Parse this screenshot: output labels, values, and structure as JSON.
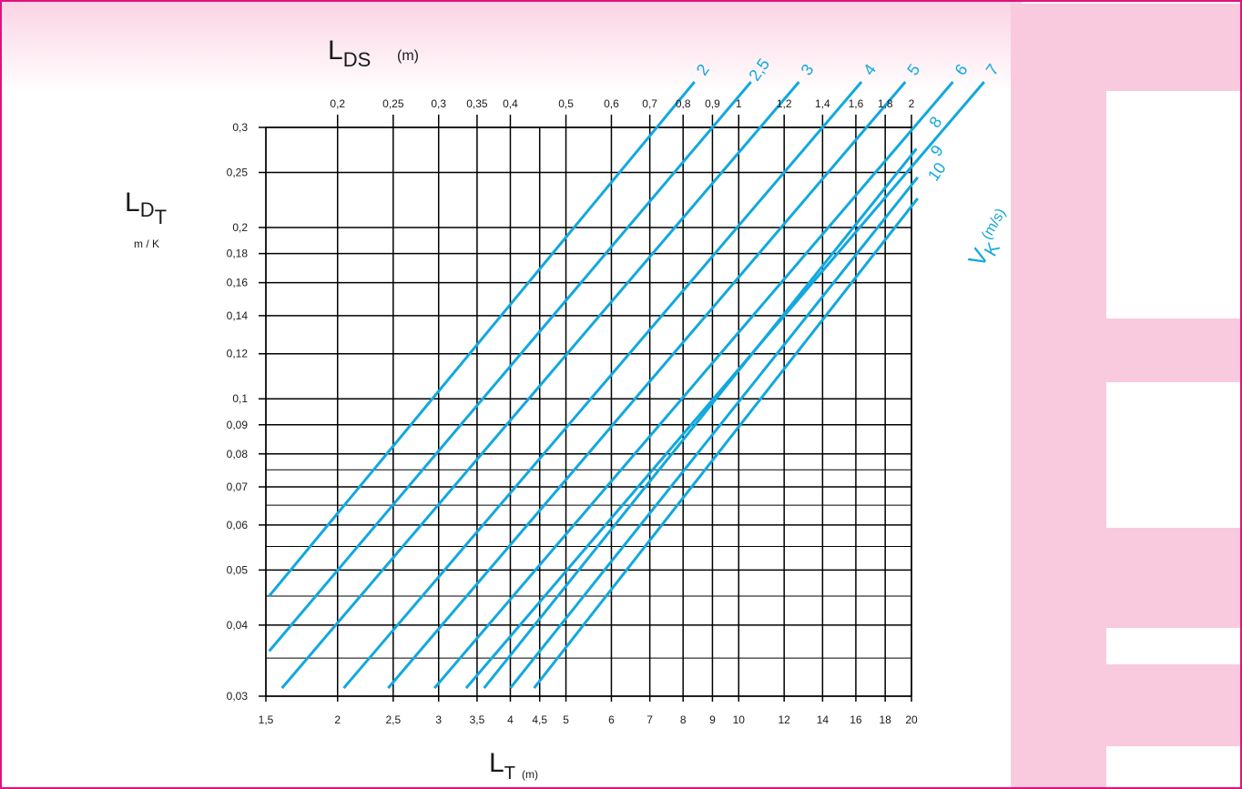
{
  "colors": {
    "frame": "#e0117f",
    "line": "#12a8de",
    "decor": "#f9c9dd",
    "grid": "#000000"
  },
  "labels": {
    "top_axis": "L",
    "top_axis_sub": "DS",
    "top_axis_unit": "(m)",
    "left_axis": "L",
    "left_axis_sub": "D",
    "left_axis_sub2": "T",
    "left_axis_unit": "m / K",
    "bottom_axis": "L",
    "bottom_axis_sub": "T",
    "bottom_axis_unit": "(m)",
    "series_axis": "V",
    "series_axis_sub": "K",
    "series_axis_unit": "(m/s)"
  },
  "chart_data": {
    "type": "line",
    "x_scale": "log",
    "y_scale": "log",
    "xlim": [
      1.5,
      20
    ],
    "ylim": [
      0.03,
      0.3
    ],
    "grid": true,
    "x_ticks": [
      1.5,
      2,
      2.5,
      3,
      3.5,
      4,
      4.5,
      5,
      6,
      7,
      8,
      9,
      10,
      12,
      14,
      16,
      18,
      20
    ],
    "x_tick_labels": [
      "1,5",
      "2",
      "2,5",
      "3",
      "3,5",
      "4",
      "4,5",
      "5",
      "6",
      "7",
      "8",
      "9",
      "10",
      "12",
      "14",
      "16",
      "18",
      "20"
    ],
    "top_ticks": [
      0.2,
      0.25,
      0.3,
      0.35,
      0.4,
      0.5,
      0.6,
      0.7,
      0.8,
      0.9,
      1,
      1.2,
      1.4,
      1.6,
      1.8,
      2
    ],
    "top_tick_labels": [
      "0,2",
      "0,25",
      "0,3",
      "0,35",
      "0,4",
      "0,5",
      "0,6",
      "0,7",
      "0,8",
      "0,9",
      "1",
      "1,2",
      "1,4",
      "1,6",
      "1,8",
      "2"
    ],
    "y_ticks": [
      0.03,
      0.04,
      0.05,
      0.06,
      0.07,
      0.08,
      0.09,
      0.1,
      0.12,
      0.14,
      0.16,
      0.18,
      0.2,
      0.25,
      0.3
    ],
    "y_tick_labels": [
      "0,03",
      "0,04",
      "0,05",
      "0,06",
      "0,07",
      "0,08",
      "0,09",
      "0,1",
      "0,12",
      "0,14",
      "0,16",
      "0,18",
      "0,2",
      "0,25",
      "0,3"
    ],
    "series": [
      {
        "name": "2",
        "x": [
          1.52,
          7.2
        ],
        "y": [
          0.045,
          0.3
        ]
      },
      {
        "name": "2,5",
        "x": [
          1.52,
          9.0
        ],
        "y": [
          0.036,
          0.3
        ]
      },
      {
        "name": "3",
        "x": [
          1.6,
          10.9
        ],
        "y": [
          0.031,
          0.3
        ]
      },
      {
        "name": "4",
        "x": [
          2.05,
          14.0
        ],
        "y": [
          0.031,
          0.3
        ]
      },
      {
        "name": "5",
        "x": [
          2.45,
          16.7
        ],
        "y": [
          0.031,
          0.3
        ]
      },
      {
        "name": "6",
        "x": [
          2.95,
          20.2
        ],
        "y": [
          0.031,
          0.3
        ]
      },
      {
        "name": "7",
        "x": [
          3.35,
          22.9
        ],
        "y": [
          0.031,
          0.3
        ]
      },
      {
        "name": "8",
        "x": [
          3.6,
          20.4
        ],
        "y": [
          0.031,
          0.275
        ]
      },
      {
        "name": "9",
        "x": [
          4.0,
          20.5
        ],
        "y": [
          0.031,
          0.245
        ]
      },
      {
        "name": "10",
        "x": [
          4.4,
          20.5
        ],
        "y": [
          0.031,
          0.225
        ]
      }
    ]
  }
}
